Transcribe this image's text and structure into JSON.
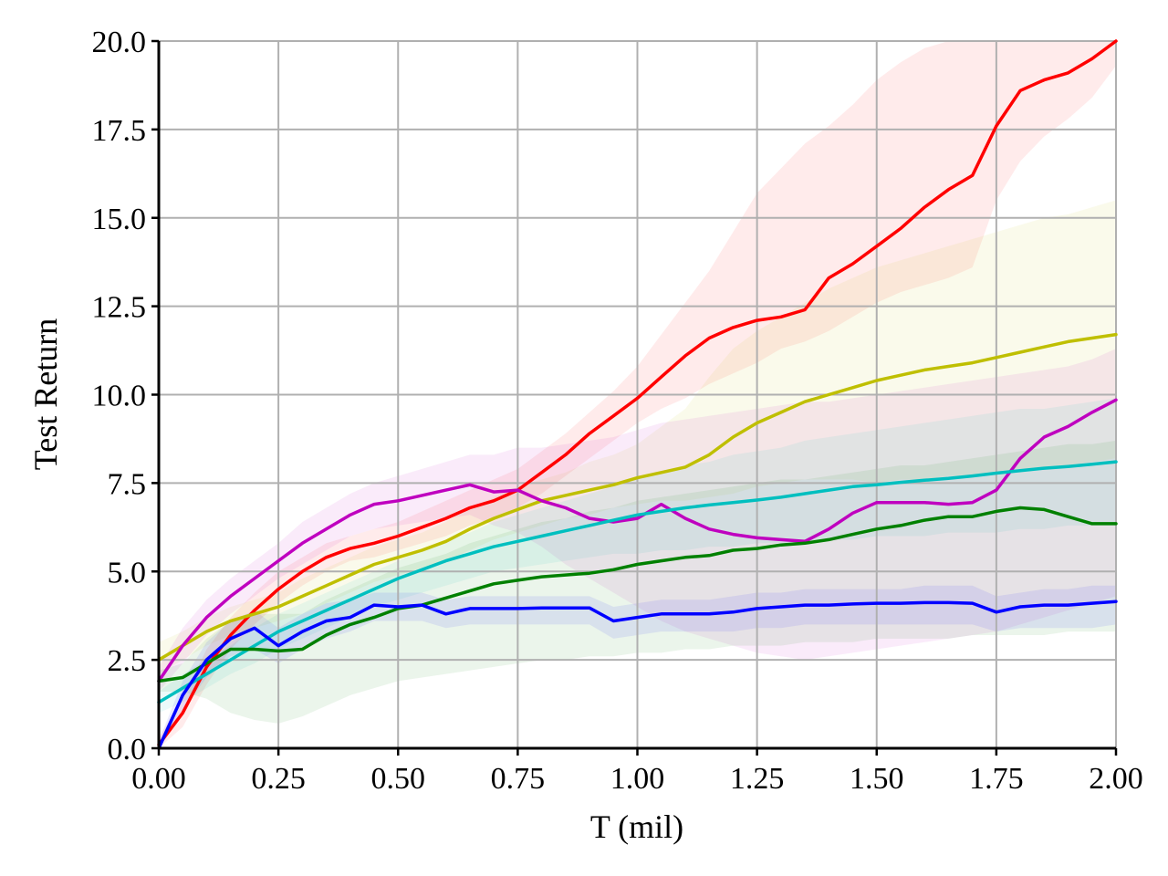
{
  "chart_data": {
    "type": "line",
    "title": "",
    "xlabel": "T (mil)",
    "ylabel": "Test Return",
    "xlim": [
      0,
      2.0
    ],
    "ylim": [
      0,
      20.0
    ],
    "grid": true,
    "legend": "none",
    "x_ticks": [
      "0.00",
      "0.25",
      "0.50",
      "0.75",
      "1.00",
      "1.25",
      "1.50",
      "1.75",
      "2.00"
    ],
    "y_ticks": [
      "0.0",
      "2.5",
      "5.0",
      "7.5",
      "10.0",
      "12.5",
      "15.0",
      "17.5",
      "20.0"
    ],
    "x": [
      0,
      0.05,
      0.1,
      0.15,
      0.2,
      0.25,
      0.3,
      0.35,
      0.4,
      0.45,
      0.5,
      0.55,
      0.6,
      0.65,
      0.7,
      0.75,
      0.8,
      0.85,
      0.9,
      0.95,
      1.0,
      1.05,
      1.1,
      1.15,
      1.2,
      1.25,
      1.3,
      1.35,
      1.4,
      1.45,
      1.5,
      1.55,
      1.6,
      1.65,
      1.7,
      1.75,
      1.8,
      1.85,
      1.9,
      1.95,
      2.0
    ],
    "series": [
      {
        "color": "#ff0000",
        "values": [
          0.1,
          1.0,
          2.3,
          3.2,
          3.9,
          4.5,
          5.0,
          5.4,
          5.65,
          5.8,
          6.0,
          6.25,
          6.5,
          6.8,
          7.0,
          7.3,
          7.8,
          8.3,
          8.9,
          9.4,
          9.9,
          10.5,
          11.1,
          11.6,
          11.9,
          12.1,
          12.2,
          12.4,
          13.3,
          13.7,
          14.2,
          14.7,
          15.3,
          15.8,
          16.2,
          17.6,
          18.6,
          18.9,
          19.1,
          19.5,
          20.0
        ],
        "lower": [
          0.0,
          0.6,
          1.8,
          2.8,
          3.5,
          4.1,
          4.6,
          5.0,
          5.3,
          5.4,
          5.6,
          5.8,
          6.0,
          6.3,
          6.5,
          6.8,
          7.2,
          7.7,
          8.2,
          8.7,
          9.2,
          9.6,
          9.9,
          10.3,
          10.6,
          10.9,
          11.3,
          11.5,
          11.8,
          12.2,
          12.6,
          12.9,
          13.1,
          13.3,
          13.6,
          15.5,
          16.6,
          17.3,
          17.8,
          18.4,
          19.3
        ],
        "upper": [
          0.3,
          1.4,
          2.8,
          3.7,
          4.4,
          5.0,
          5.4,
          5.8,
          6.0,
          6.2,
          6.4,
          6.7,
          7.0,
          7.3,
          7.6,
          7.9,
          8.4,
          8.9,
          9.5,
          10.1,
          10.8,
          11.7,
          12.6,
          13.5,
          14.6,
          15.7,
          16.4,
          17.1,
          17.6,
          18.2,
          18.9,
          19.4,
          19.8,
          20.0,
          20.0,
          20.0,
          20.0,
          20.0,
          20.0,
          20.0,
          20.0
        ]
      },
      {
        "color": "#bfbf00",
        "values": [
          2.5,
          2.9,
          3.3,
          3.6,
          3.8,
          4.0,
          4.3,
          4.6,
          4.9,
          5.2,
          5.4,
          5.6,
          5.85,
          6.2,
          6.5,
          6.75,
          7.0,
          7.15,
          7.3,
          7.45,
          7.65,
          7.8,
          7.95,
          8.3,
          8.8,
          9.2,
          9.5,
          9.8,
          10.0,
          10.2,
          10.4,
          10.55,
          10.7,
          10.8,
          10.9,
          11.05,
          11.2,
          11.35,
          11.5,
          11.6,
          11.7
        ],
        "lower": [
          2.1,
          2.5,
          2.9,
          3.2,
          3.4,
          3.6,
          3.8,
          4.1,
          4.4,
          4.7,
          4.9,
          5.1,
          5.3,
          5.6,
          5.9,
          6.1,
          6.3,
          6.5,
          6.6,
          6.8,
          6.9,
          7.0,
          7.0,
          7.1,
          7.2,
          7.4,
          7.5,
          7.6,
          7.6,
          7.6,
          7.5,
          7.6,
          7.6,
          7.7,
          7.7,
          7.8,
          7.9,
          7.9,
          8.0,
          8.1,
          8.2
        ],
        "upper": [
          3.0,
          3.3,
          3.7,
          4.0,
          4.2,
          4.4,
          4.8,
          5.1,
          5.4,
          5.7,
          5.9,
          6.1,
          6.4,
          6.8,
          7.1,
          7.4,
          7.6,
          7.8,
          8.1,
          8.3,
          8.6,
          9.1,
          9.6,
          10.5,
          11.3,
          11.8,
          12.2,
          12.6,
          13.0,
          13.3,
          13.6,
          13.8,
          14.0,
          14.2,
          14.4,
          14.6,
          14.8,
          15.0,
          15.1,
          15.3,
          15.5
        ]
      },
      {
        "color": "#bf00bf",
        "values": [
          1.9,
          2.9,
          3.7,
          4.3,
          4.8,
          5.3,
          5.8,
          6.2,
          6.6,
          6.9,
          7.0,
          7.15,
          7.3,
          7.45,
          7.25,
          7.3,
          7.0,
          6.8,
          6.5,
          6.4,
          6.5,
          6.9,
          6.5,
          6.2,
          6.05,
          5.95,
          5.9,
          5.85,
          6.2,
          6.65,
          6.95,
          6.95,
          6.95,
          6.9,
          6.95,
          7.3,
          8.2,
          8.8,
          9.1,
          9.5,
          9.85
        ],
        "lower": [
          1.6,
          2.4,
          3.2,
          3.8,
          4.3,
          4.8,
          5.2,
          5.6,
          6.0,
          6.2,
          6.3,
          6.4,
          6.5,
          6.6,
          6.3,
          6.1,
          5.7,
          5.2,
          4.8,
          4.4,
          4.0,
          3.6,
          3.3,
          3.1,
          2.9,
          2.7,
          2.6,
          2.5,
          2.6,
          2.7,
          2.8,
          2.9,
          3.0,
          3.1,
          3.2,
          3.3,
          3.5,
          3.7,
          3.9,
          4.1,
          4.3
        ],
        "upper": [
          2.3,
          3.4,
          4.2,
          4.8,
          5.3,
          5.8,
          6.4,
          6.8,
          7.2,
          7.5,
          7.7,
          7.9,
          8.1,
          8.3,
          8.3,
          8.5,
          8.5,
          8.6,
          8.7,
          8.8,
          9.0,
          9.2,
          9.3,
          9.4,
          9.5,
          9.6,
          9.7,
          9.8,
          9.8,
          9.9,
          10.0,
          10.1,
          10.2,
          10.3,
          10.4,
          10.5,
          10.6,
          10.7,
          10.8,
          11.0,
          11.3
        ]
      },
      {
        "color": "#00bfbf",
        "values": [
          1.3,
          1.7,
          2.1,
          2.5,
          2.9,
          3.3,
          3.6,
          3.9,
          4.2,
          4.5,
          4.8,
          5.05,
          5.3,
          5.5,
          5.7,
          5.85,
          6.0,
          6.15,
          6.3,
          6.45,
          6.6,
          6.7,
          6.8,
          6.88,
          6.95,
          7.02,
          7.1,
          7.2,
          7.3,
          7.4,
          7.45,
          7.52,
          7.58,
          7.63,
          7.7,
          7.78,
          7.85,
          7.92,
          7.97,
          8.03,
          8.1
        ],
        "lower": [
          1.0,
          1.3,
          1.7,
          2.1,
          2.4,
          2.8,
          3.1,
          3.4,
          3.7,
          4.0,
          4.2,
          4.4,
          4.6,
          4.8,
          5.0,
          5.1,
          5.2,
          5.3,
          5.4,
          5.5,
          5.5,
          5.6,
          5.6,
          5.7,
          5.7,
          5.8,
          5.8,
          5.8,
          5.9,
          5.9,
          6.0,
          6.0,
          6.0,
          6.1,
          6.1,
          6.1,
          6.2,
          6.2,
          6.3,
          6.3,
          6.3
        ],
        "upper": [
          1.6,
          2.1,
          2.5,
          2.9,
          3.4,
          3.8,
          4.1,
          4.4,
          4.7,
          5.0,
          5.3,
          5.6,
          5.9,
          6.1,
          6.4,
          6.6,
          6.8,
          7.0,
          7.2,
          7.4,
          7.6,
          7.8,
          8.0,
          8.1,
          8.3,
          8.4,
          8.5,
          8.7,
          8.8,
          8.9,
          9.0,
          9.1,
          9.2,
          9.3,
          9.4,
          9.5,
          9.6,
          9.6,
          9.7,
          9.8,
          9.9
        ]
      },
      {
        "color": "#008000",
        "values": [
          1.9,
          2.0,
          2.4,
          2.8,
          2.8,
          2.75,
          2.8,
          3.2,
          3.5,
          3.7,
          3.95,
          4.05,
          4.25,
          4.45,
          4.65,
          4.75,
          4.85,
          4.9,
          4.95,
          5.05,
          5.2,
          5.3,
          5.4,
          5.45,
          5.6,
          5.65,
          5.75,
          5.8,
          5.9,
          6.05,
          6.2,
          6.3,
          6.45,
          6.55,
          6.55,
          6.7,
          6.8,
          6.75,
          6.55,
          6.35,
          6.35
        ],
        "lower": [
          1.6,
          1.6,
          1.4,
          1.0,
          0.8,
          0.7,
          0.9,
          1.2,
          1.5,
          1.7,
          1.9,
          2.0,
          2.1,
          2.2,
          2.3,
          2.4,
          2.5,
          2.5,
          2.6,
          2.6,
          2.7,
          2.7,
          2.8,
          2.8,
          2.9,
          2.9,
          2.9,
          3.0,
          3.0,
          3.0,
          3.1,
          3.1,
          3.1,
          3.1,
          3.2,
          3.2,
          3.2,
          3.2,
          3.3,
          3.3,
          3.3
        ],
        "upper": [
          2.2,
          2.4,
          3.1,
          3.6,
          3.8,
          3.8,
          3.8,
          4.2,
          4.5,
          4.8,
          5.1,
          5.3,
          5.5,
          5.8,
          6.0,
          6.2,
          6.4,
          6.5,
          6.7,
          6.8,
          7.0,
          7.1,
          7.2,
          7.3,
          7.4,
          7.5,
          7.6,
          7.6,
          7.7,
          7.8,
          7.9,
          8.0,
          8.0,
          8.1,
          8.2,
          8.3,
          8.4,
          8.5,
          8.6,
          8.6,
          8.7
        ]
      },
      {
        "color": "#0000ff",
        "values": [
          0.0,
          1.5,
          2.5,
          3.1,
          3.4,
          2.9,
          3.3,
          3.6,
          3.7,
          4.05,
          4.0,
          4.05,
          3.8,
          3.95,
          3.95,
          3.95,
          3.97,
          3.97,
          3.97,
          3.6,
          3.7,
          3.8,
          3.8,
          3.8,
          3.85,
          3.95,
          4.0,
          4.05,
          4.05,
          4.08,
          4.1,
          4.1,
          4.12,
          4.12,
          4.1,
          3.85,
          4.0,
          4.05,
          4.05,
          4.1,
          4.15
        ],
        "lower": [
          0.0,
          1.1,
          2.0,
          2.6,
          2.8,
          2.4,
          2.8,
          3.1,
          3.3,
          3.6,
          3.6,
          3.6,
          3.4,
          3.5,
          3.5,
          3.5,
          3.5,
          3.5,
          3.5,
          3.1,
          3.2,
          3.3,
          3.3,
          3.3,
          3.3,
          3.4,
          3.4,
          3.5,
          3.5,
          3.5,
          3.5,
          3.5,
          3.5,
          3.5,
          3.5,
          3.3,
          3.4,
          3.4,
          3.4,
          3.4,
          3.5
        ],
        "upper": [
          0.2,
          1.9,
          3.0,
          3.6,
          3.9,
          3.4,
          3.8,
          4.1,
          4.2,
          4.4,
          4.4,
          4.4,
          4.2,
          4.3,
          4.3,
          4.3,
          4.3,
          4.3,
          4.3,
          4.0,
          4.1,
          4.2,
          4.2,
          4.2,
          4.3,
          4.4,
          4.4,
          4.5,
          4.5,
          4.5,
          4.5,
          4.5,
          4.6,
          4.6,
          4.6,
          4.3,
          4.4,
          4.5,
          4.5,
          4.6,
          4.6
        ]
      }
    ]
  }
}
